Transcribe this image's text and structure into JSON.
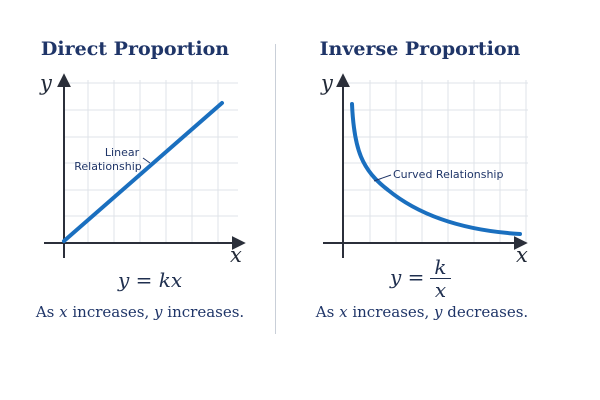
{
  "left": {
    "title": "Direct Proportion",
    "y_axis": "y",
    "x_axis": "x",
    "annotation_line1": "Linear",
    "annotation_line2": "Relationship",
    "formula": "y = kx",
    "caption_pre": "As ",
    "caption_x": "x",
    "caption_mid": " increases, ",
    "caption_y": "y",
    "caption_post": " increases."
  },
  "right": {
    "title": "Inverse Proportion",
    "y_axis": "y",
    "x_axis": "x",
    "annotation": "Curved Relationship",
    "formula_lhs": "y =",
    "formula_num": "k",
    "formula_den": "x",
    "caption_pre": "As ",
    "caption_x": "x",
    "caption_mid": " increases, ",
    "caption_y": "y",
    "caption_post": " decreases."
  },
  "colors": {
    "curve": "#1a6fbf",
    "axis": "#2b2f3a",
    "grid": "#dfe3e8",
    "title": "#1f3568"
  }
}
